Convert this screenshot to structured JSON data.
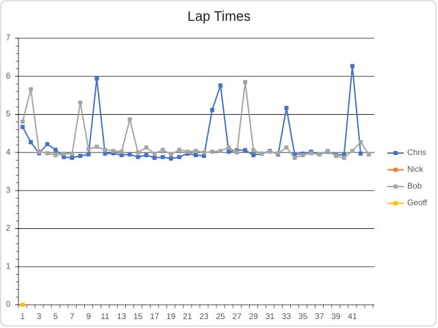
{
  "chart_data": {
    "type": "line",
    "title": "Lap Times",
    "categories": [
      1,
      null,
      3,
      null,
      5,
      null,
      7,
      null,
      9,
      null,
      11,
      null,
      13,
      null,
      15,
      null,
      17,
      null,
      19,
      null,
      21,
      null,
      23,
      null,
      25,
      null,
      27,
      null,
      29,
      null,
      31,
      null,
      33,
      null,
      35,
      null,
      37,
      null,
      39,
      null,
      41,
      null,
      null
    ],
    "series": [
      {
        "name": "Chris",
        "color": "#4472c4",
        "values": [
          4.67,
          4.27,
          3.98,
          4.22,
          4.07,
          3.88,
          3.86,
          3.91,
          3.95,
          5.94,
          3.97,
          3.98,
          3.93,
          3.95,
          3.88,
          3.93,
          3.86,
          3.88,
          3.84,
          3.88,
          3.97,
          3.93,
          3.91,
          5.12,
          5.76,
          4.02,
          4.06,
          4.06,
          3.93,
          3.97,
          4.04,
          3.95,
          5.17,
          3.95,
          3.97,
          4.02,
          3.95,
          4.02,
          3.93,
          3.95,
          6.27,
          3.97,
          null
        ]
      },
      {
        "name": "Nick",
        "color": "#ed7d31",
        "values": [
          0,
          null,
          null,
          null,
          null,
          null,
          null,
          null,
          null,
          null,
          null,
          null,
          null,
          null,
          null,
          null,
          null,
          null,
          null,
          null,
          null,
          null,
          null,
          null,
          null,
          null,
          null,
          null,
          null,
          null,
          null,
          null,
          null,
          null,
          null,
          null,
          null,
          null,
          null,
          null,
          null,
          null,
          null
        ]
      },
      {
        "name": "Bob",
        "color": "#a5a5a5",
        "values": [
          4.81,
          5.66,
          4.02,
          3.98,
          3.93,
          3.97,
          3.97,
          5.31,
          4.09,
          4.15,
          4.07,
          4.04,
          4.02,
          4.87,
          4.0,
          4.13,
          3.97,
          4.07,
          3.95,
          4.07,
          4.02,
          4.04,
          4.0,
          4.02,
          4.04,
          4.13,
          4.0,
          5.85,
          4.06,
          3.97,
          4.02,
          3.98,
          4.13,
          3.86,
          3.93,
          3.98,
          3.95,
          4.04,
          3.91,
          3.86,
          4.04,
          4.27,
          3.95
        ]
      },
      {
        "name": "Geoff",
        "color": "#ffc000",
        "values": [
          0,
          null,
          null,
          null,
          null,
          null,
          null,
          null,
          null,
          null,
          null,
          null,
          null,
          null,
          null,
          null,
          null,
          null,
          null,
          null,
          null,
          null,
          null,
          null,
          null,
          null,
          null,
          null,
          null,
          null,
          null,
          null,
          null,
          null,
          null,
          null,
          null,
          null,
          null,
          null,
          null,
          null,
          null
        ]
      }
    ],
    "ylim": [
      0,
      7
    ],
    "yticks": [
      0,
      1,
      2,
      3,
      4,
      5,
      6,
      7
    ],
    "grid": true,
    "legend": "right"
  }
}
